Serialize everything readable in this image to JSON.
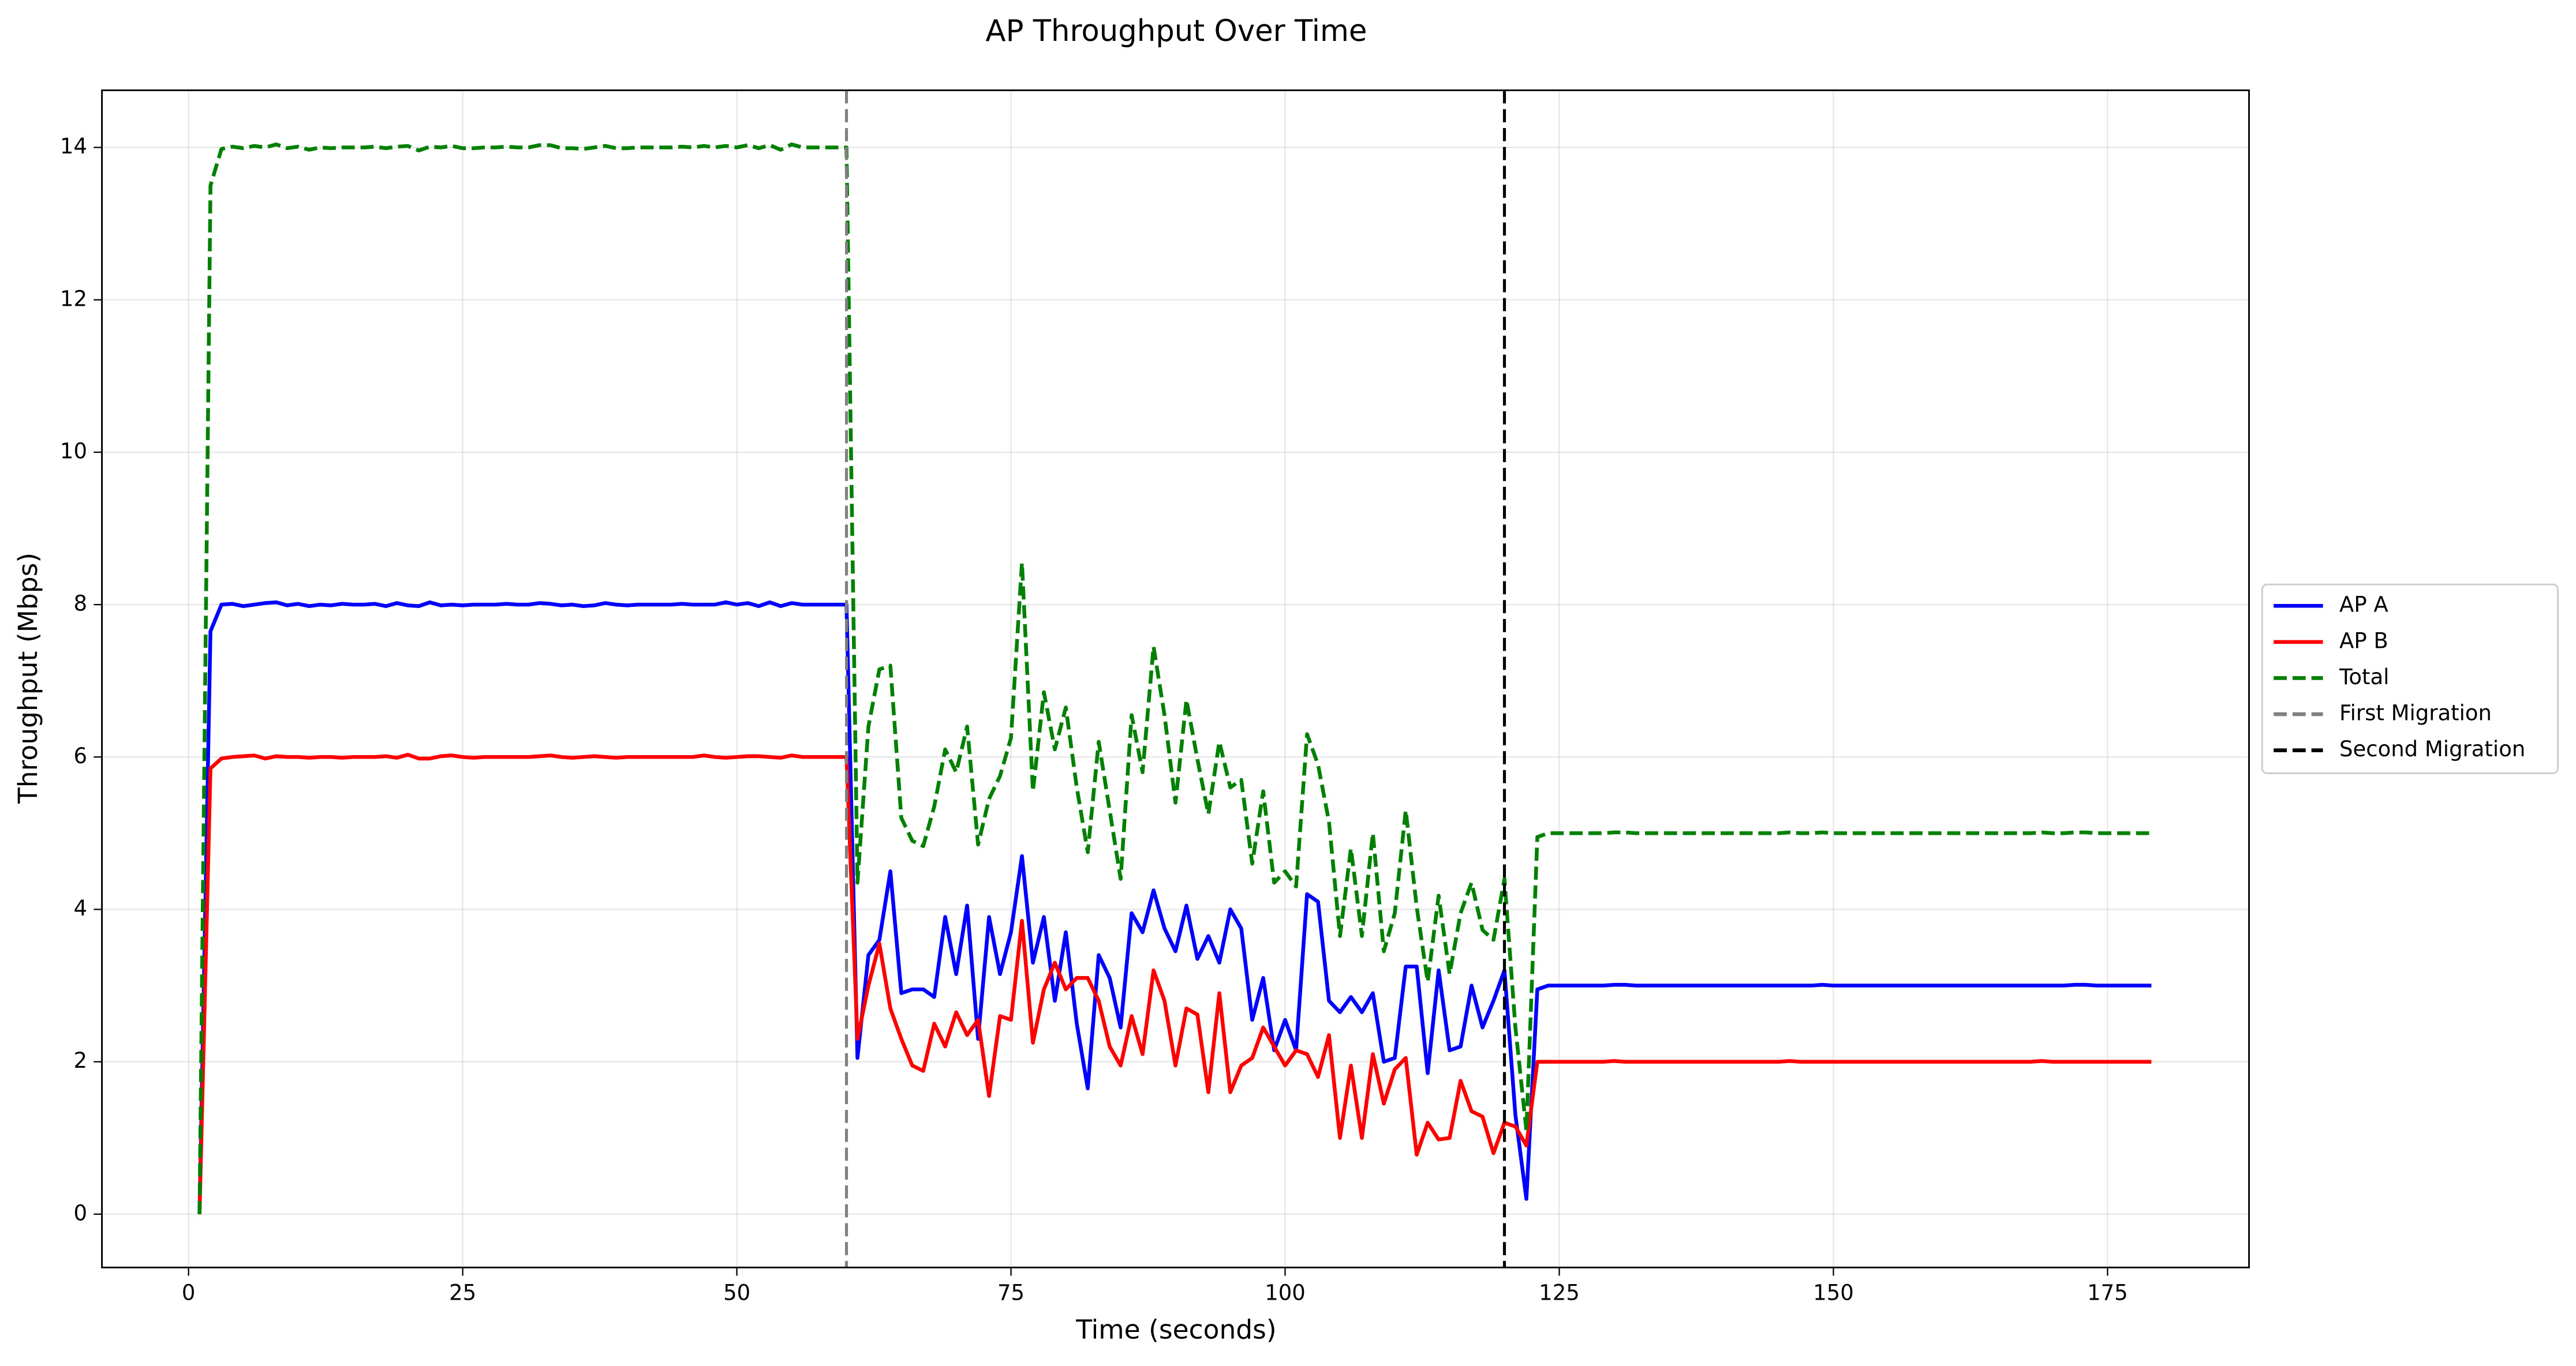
{
  "chart_data": {
    "type": "line",
    "title": "AP Throughput Over Time",
    "xlabel": "Time (seconds)",
    "ylabel": "Throughput (Mbps)",
    "x": [
      1,
      2,
      3,
      4,
      5,
      6,
      7,
      8,
      9,
      10,
      11,
      12,
      13,
      14,
      15,
      16,
      17,
      18,
      19,
      20,
      21,
      22,
      23,
      24,
      25,
      26,
      27,
      28,
      29,
      30,
      31,
      32,
      33,
      34,
      35,
      36,
      37,
      38,
      39,
      40,
      41,
      42,
      43,
      44,
      45,
      46,
      47,
      48,
      49,
      50,
      51,
      52,
      53,
      54,
      55,
      56,
      57,
      58,
      59,
      60,
      61,
      62,
      63,
      64,
      65,
      66,
      67,
      68,
      69,
      70,
      71,
      72,
      73,
      74,
      75,
      76,
      77,
      78,
      79,
      80,
      81,
      82,
      83,
      84,
      85,
      86,
      87,
      88,
      89,
      90,
      91,
      92,
      93,
      94,
      95,
      96,
      97,
      98,
      99,
      100,
      101,
      102,
      103,
      104,
      105,
      106,
      107,
      108,
      109,
      110,
      111,
      112,
      113,
      114,
      115,
      116,
      117,
      118,
      119,
      120,
      121,
      122,
      123,
      124,
      125,
      126,
      127,
      128,
      129,
      130,
      131,
      132,
      133,
      134,
      135,
      136,
      137,
      138,
      139,
      140,
      141,
      142,
      143,
      144,
      145,
      146,
      147,
      148,
      149,
      150,
      151,
      152,
      153,
      154,
      155,
      156,
      157,
      158,
      159,
      160,
      161,
      162,
      163,
      164,
      165,
      166,
      167,
      168,
      169,
      170,
      171,
      172,
      173,
      174,
      175,
      176,
      177,
      178,
      179
    ],
    "series": [
      {
        "name": "AP A",
        "color": "#0000ff",
        "style": "solid",
        "values": [
          0,
          7.65,
          8.0,
          8.01,
          7.98,
          8.0,
          8.02,
          8.03,
          7.99,
          8.01,
          7.98,
          8.0,
          7.99,
          8.01,
          8.0,
          8.0,
          8.01,
          7.98,
          8.02,
          7.99,
          7.98,
          8.03,
          7.99,
          8.0,
          7.99,
          8.0,
          8.0,
          8.0,
          8.01,
          8.0,
          8.0,
          8.02,
          8.01,
          7.99,
          8.0,
          7.98,
          7.99,
          8.02,
          8.0,
          7.99,
          8.0,
          8.0,
          8.0,
          8.0,
          8.01,
          8.0,
          8.0,
          8.0,
          8.03,
          8.0,
          8.02,
          7.98,
          8.03,
          7.98,
          8.02,
          8.0,
          8.0,
          8.0,
          8.0,
          8.0,
          2.05,
          3.4,
          3.6,
          4.5,
          2.9,
          2.95,
          2.95,
          2.85,
          3.9,
          3.15,
          4.05,
          2.3,
          3.9,
          3.15,
          3.7,
          4.7,
          3.3,
          3.9,
          2.8,
          3.7,
          2.5,
          1.65,
          3.4,
          3.1,
          2.45,
          3.95,
          3.7,
          4.25,
          3.75,
          3.45,
          4.05,
          3.35,
          3.65,
          3.3,
          4.0,
          3.75,
          2.55,
          3.1,
          2.15,
          2.55,
          2.15,
          4.2,
          4.1,
          2.8,
          2.65,
          2.85,
          2.65,
          2.9,
          2.0,
          2.05,
          3.25,
          3.25,
          1.85,
          3.2,
          2.15,
          2.2,
          3.0,
          2.45,
          2.8,
          3.2,
          1.3,
          0.2,
          2.95,
          3,
          3,
          3,
          3,
          3,
          3,
          3.01,
          3.01,
          3,
          3,
          3,
          3,
          3,
          3,
          3,
          3,
          3,
          3,
          3,
          3,
          3,
          3,
          3,
          3,
          3,
          3.01,
          3,
          3,
          3,
          3,
          3,
          3,
          3,
          3,
          3,
          3,
          3,
          3,
          3,
          3,
          3,
          3,
          3,
          3,
          3,
          3,
          3,
          3,
          3.01,
          3.01,
          3,
          3,
          3,
          3,
          3,
          3
        ]
      },
      {
        "name": "AP B",
        "color": "#ff0000",
        "style": "solid",
        "values": [
          0,
          5.85,
          5.98,
          6.0,
          6.01,
          6.02,
          5.98,
          6.01,
          6.0,
          6.0,
          5.99,
          6.0,
          6.0,
          5.99,
          6.0,
          6.0,
          6.0,
          6.01,
          5.99,
          6.03,
          5.98,
          5.98,
          6.01,
          6.02,
          6.0,
          5.99,
          6.0,
          6.0,
          6.0,
          6.0,
          6.0,
          6.01,
          6.02,
          6.0,
          5.99,
          6.0,
          6.01,
          6.0,
          5.99,
          6.0,
          6.0,
          6.0,
          6.0,
          6.0,
          6.0,
          6.0,
          6.02,
          6.0,
          5.99,
          6.0,
          6.01,
          6.01,
          6.0,
          5.99,
          6.02,
          6.0,
          6.0,
          6.0,
          6.0,
          6.0,
          2.3,
          3.0,
          3.55,
          2.7,
          2.3,
          1.95,
          1.88,
          2.5,
          2.2,
          2.65,
          2.35,
          2.55,
          1.55,
          2.6,
          2.55,
          3.85,
          2.25,
          2.95,
          3.3,
          2.95,
          3.1,
          3.1,
          2.8,
          2.2,
          1.95,
          2.6,
          2.1,
          3.2,
          2.8,
          1.95,
          2.7,
          2.62,
          1.6,
          2.9,
          1.6,
          1.95,
          2.05,
          2.45,
          2.2,
          1.95,
          2.15,
          2.1,
          1.8,
          2.35,
          1.0,
          1.95,
          1.0,
          2.1,
          1.45,
          1.9,
          2.05,
          0.78,
          1.2,
          0.98,
          1.0,
          1.75,
          1.35,
          1.28,
          0.8,
          1.2,
          1.15,
          0.9,
          2.0,
          2,
          2,
          2,
          2,
          2,
          2,
          2.01,
          2,
          2,
          2,
          2,
          2,
          2,
          2,
          2,
          2,
          2,
          2,
          2,
          2,
          2,
          2,
          2.01,
          2,
          2,
          2,
          2,
          2,
          2,
          2,
          2,
          2,
          2,
          2,
          2,
          2,
          2,
          2,
          2,
          2,
          2,
          2,
          2,
          2,
          2,
          2.01,
          2,
          2,
          2,
          2,
          2,
          2,
          2,
          2,
          2,
          2
        ]
      },
      {
        "name": "Total",
        "color": "#008000",
        "style": "dashed",
        "values": [
          0,
          13.5,
          13.98,
          14.01,
          13.99,
          14.02,
          14.0,
          14.04,
          13.99,
          14.01,
          13.97,
          14.0,
          13.99,
          14.0,
          14.0,
          14.0,
          14.01,
          13.99,
          14.01,
          14.02,
          13.96,
          14.01,
          14.0,
          14.02,
          13.99,
          13.99,
          14.0,
          14.0,
          14.01,
          14.0,
          14.0,
          14.03,
          14.03,
          13.99,
          13.99,
          13.98,
          14.0,
          14.02,
          13.99,
          13.99,
          14.0,
          14.0,
          14.0,
          14.0,
          14.01,
          14.0,
          14.02,
          14.0,
          14.02,
          14.0,
          14.03,
          13.99,
          14.03,
          13.97,
          14.04,
          14.0,
          14.0,
          14.0,
          14.0,
          14.0,
          4.35,
          6.4,
          7.15,
          7.2,
          5.2,
          4.9,
          4.83,
          5.35,
          6.1,
          5.8,
          6.4,
          4.85,
          5.45,
          5.75,
          6.25,
          8.55,
          5.55,
          6.85,
          6.1,
          6.65,
          5.6,
          4.75,
          6.2,
          5.3,
          4.4,
          6.55,
          5.8,
          7.45,
          6.55,
          5.4,
          6.75,
          5.97,
          5.25,
          6.2,
          5.6,
          5.7,
          4.6,
          5.55,
          4.35,
          4.5,
          4.3,
          6.3,
          5.9,
          5.15,
          3.65,
          4.8,
          3.65,
          5.0,
          3.45,
          3.95,
          5.3,
          4.03,
          3.05,
          4.18,
          3.15,
          3.95,
          4.35,
          3.73,
          3.6,
          4.4,
          2.45,
          1.1,
          4.95,
          5,
          5,
          5,
          5,
          5,
          5,
          5.01,
          5.01,
          5,
          5,
          5,
          5,
          5,
          5,
          5,
          5,
          5,
          5,
          5,
          5,
          5,
          5,
          5.01,
          5,
          5,
          5.01,
          5,
          5,
          5,
          5,
          5,
          5,
          5,
          5,
          5,
          5,
          5,
          5,
          5,
          5,
          5,
          5,
          5,
          5,
          5,
          5.01,
          5,
          5,
          5.01,
          5.01,
          5,
          5,
          5,
          5,
          5,
          5
        ]
      }
    ],
    "vlines": [
      {
        "name": "First Migration",
        "x": 60,
        "color": "#808080",
        "style": "dashed"
      },
      {
        "name": "Second Migration",
        "x": 120,
        "color": "#000000",
        "style": "dashed"
      }
    ],
    "xlim": [
      -7.9,
      187.9
    ],
    "ylim": [
      -0.7,
      14.75
    ],
    "xticks": [
      0,
      25,
      50,
      75,
      100,
      125,
      150,
      175
    ],
    "yticks": [
      0,
      2,
      4,
      6,
      8,
      10,
      12,
      14
    ],
    "grid": true,
    "legend": "outside-right"
  }
}
